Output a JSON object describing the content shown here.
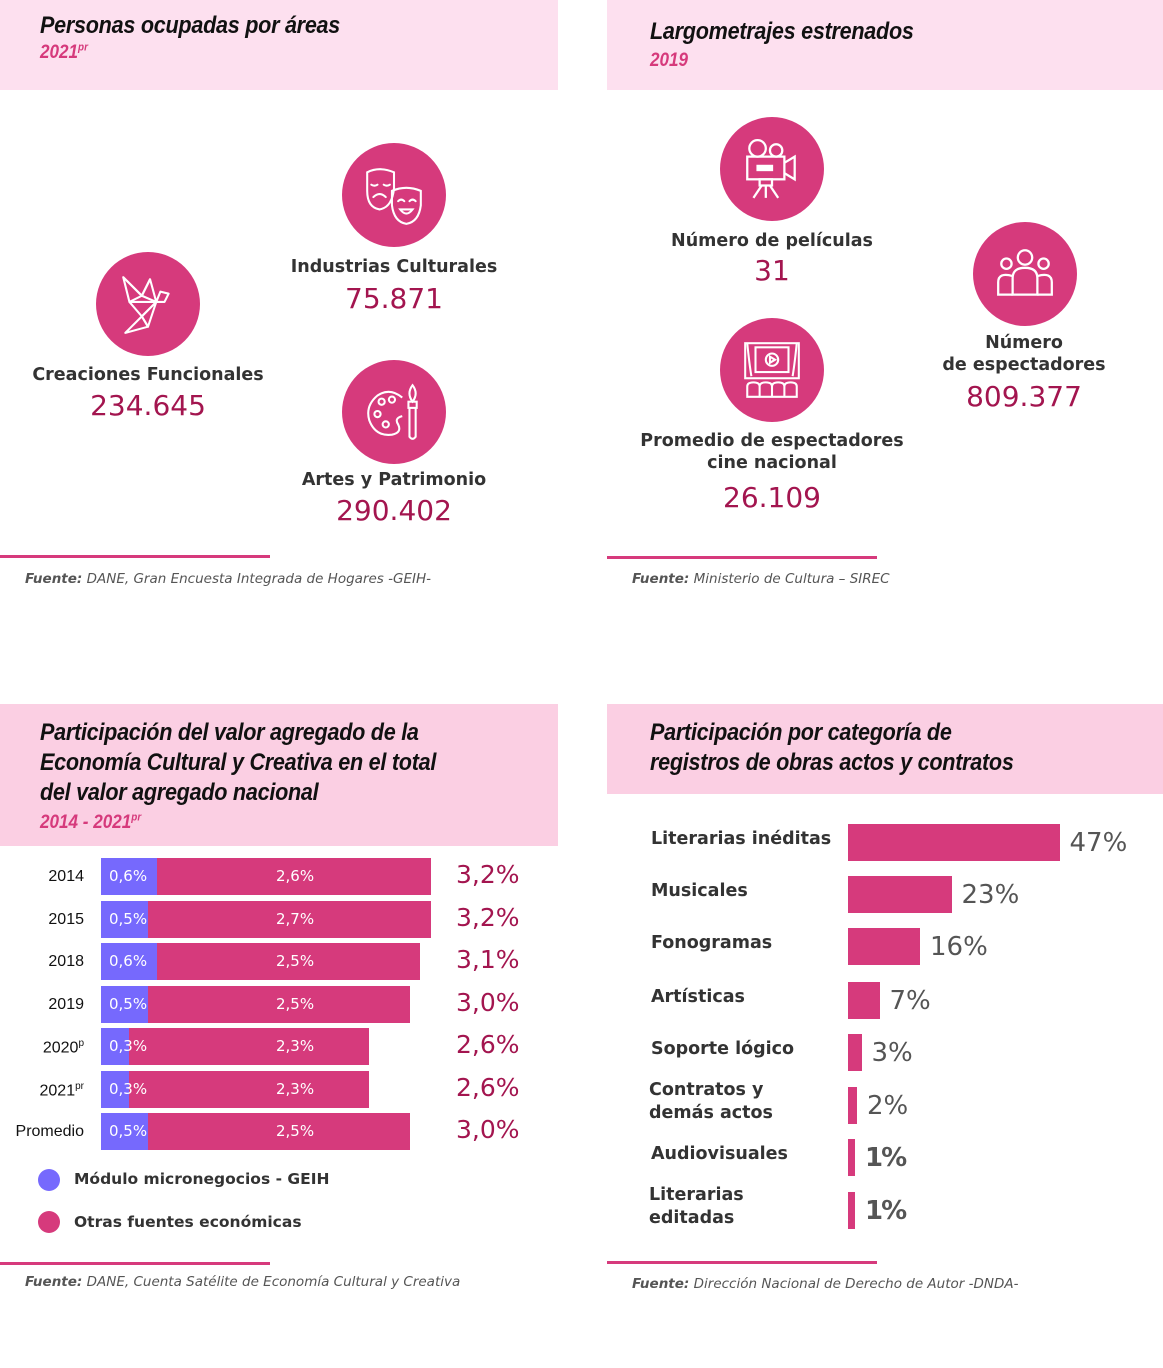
{
  "panels": {
    "ocupados": {
      "title": "Personas ocupadas por áreas",
      "subtitle_year": "2021",
      "subtitle_sup": "pr",
      "items": [
        {
          "icon": "origami-bird-icon",
          "label": "Creaciones Funcionales",
          "value": "234.645"
        },
        {
          "icon": "theater-masks-icon",
          "label": "Industrias Culturales",
          "value": "75.871"
        },
        {
          "icon": "paint-palette-icon",
          "label": "Artes y Patrimonio",
          "value": "290.402"
        }
      ],
      "source_label": "Fuente:",
      "source_text": "DANE, Gran Encuesta Integrada de Hogares -GEIH-"
    },
    "largometrajes": {
      "title": "Largometrajes estrenados",
      "subtitle_year": "2019",
      "items": [
        {
          "icon": "movie-camera-icon",
          "label": "Número de películas",
          "value": "31"
        },
        {
          "icon": "cinema-screen-icon",
          "label_line1": "Promedio de espectadores",
          "label_line2": "cine nacional",
          "value": "26.109"
        },
        {
          "icon": "audience-group-icon",
          "label_line1": "Número",
          "label_line2": "de espectadores",
          "value": "809.377"
        }
      ],
      "source_label": "Fuente:",
      "source_text": "Ministerio de Cultura – SIREC"
    },
    "valor_agregado": {
      "title_line1": "Participación del valor agregado de la",
      "title_line2": "Economía Cultural y Creativa en el total",
      "title_line3": "del valor agregado nacional",
      "subtitle_year": "2014 - 2021",
      "subtitle_sup": "pr",
      "source_label": "Fuente:",
      "source_text": "DANE, Cuenta Satélite de Economía Cultural y Creativa"
    },
    "registros": {
      "title_line1": "Participación por categoría de",
      "title_line2": "registros de obras actos y contratos",
      "source_label": "Fuente:",
      "source_text": "Dirección Nacional de Derecho de Autor -DNDA-"
    }
  },
  "colors": {
    "accent": "#d63a7c",
    "secondary": "#7669fd",
    "value_text": "#a3154f",
    "header_bg": "#fde0ef"
  },
  "chart_data": [
    {
      "type": "bar",
      "orientation": "horizontal",
      "stacked": true,
      "title": "Participación del valor agregado de la Economía Cultural y Creativa en el total del valor agregado nacional",
      "subtitle": "2014 - 2021pr",
      "categories": [
        "2014",
        "2015",
        "2018",
        "2019",
        "2020",
        "2021",
        "Promedio"
      ],
      "category_sups": [
        "",
        "",
        "",
        "",
        "p",
        "pr",
        ""
      ],
      "series": [
        {
          "name": "Módulo micronegocios - GEIH",
          "color": "#7669fd",
          "values": [
            0.6,
            0.5,
            0.6,
            0.5,
            0.3,
            0.3,
            0.5
          ],
          "labels": [
            "0,6%",
            "0,5%",
            "0,6%",
            "0,5%",
            "0,3%",
            "0,3%",
            "0,5%"
          ]
        },
        {
          "name": "Otras fuentes económicas",
          "color": "#d63a7c",
          "values": [
            2.6,
            2.7,
            2.5,
            2.5,
            2.3,
            2.3,
            2.5
          ],
          "labels": [
            "2,6%",
            "2,7%",
            "2,5%",
            "2,5%",
            "2,3%",
            "2,3%",
            "2,5%"
          ]
        }
      ],
      "totals": [
        3.2,
        3.2,
        3.1,
        3.0,
        2.6,
        2.6,
        3.0
      ],
      "total_labels": [
        "3,2%",
        "3,2%",
        "3,1%",
        "3,0%",
        "2,6%",
        "2,6%",
        "3,0%"
      ],
      "unit": "%",
      "legend": "bottom-left"
    },
    {
      "type": "bar",
      "orientation": "horizontal",
      "title": "Participación por categoría de registros de obras actos y contratos",
      "categories": [
        "Literarias inéditas",
        "Musicales",
        "Fonogramas",
        "Artísticas",
        "Soporte lógico",
        "Contratos y demás actos",
        "Audiovisuales",
        "Literarias editadas"
      ],
      "category_lines": [
        [
          "Literarias inéditas"
        ],
        [
          "Musicales"
        ],
        [
          "Fonogramas"
        ],
        [
          "Artísticas"
        ],
        [
          "Soporte lógico"
        ],
        [
          "Contratos y",
          "demás actos"
        ],
        [
          "Audiovisuales"
        ],
        [
          "Literarias",
          "editadas"
        ]
      ],
      "values": [
        47,
        23,
        16,
        7,
        3,
        2,
        1,
        1
      ],
      "value_labels": [
        "47%",
        "23%",
        "16%",
        "7%",
        "3%",
        "2%",
        "1%",
        "1%"
      ],
      "unit": "%"
    }
  ]
}
